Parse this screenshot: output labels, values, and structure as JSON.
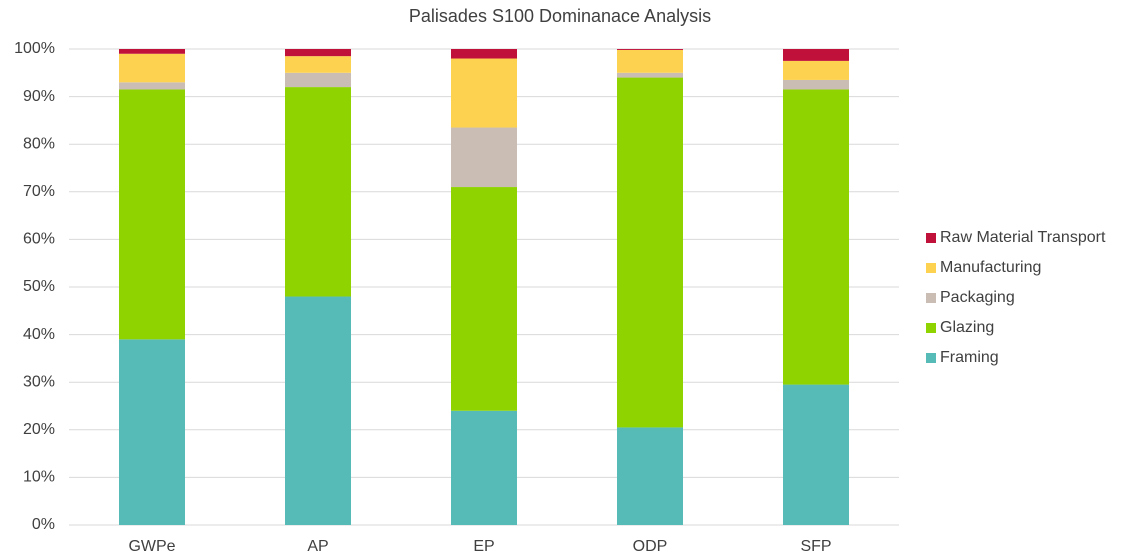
{
  "chart_data": {
    "type": "stacked_bar",
    "title": "Palisades S100 Dominanace Analysis",
    "categories": [
      "GWPe",
      "AP",
      "EP",
      "ODP",
      "SFP"
    ],
    "series": [
      {
        "name": "Framing",
        "color": "#56bbb7",
        "values": [
          39,
          48,
          24,
          20.5,
          29.5
        ]
      },
      {
        "name": "Glazing",
        "color": "#8fd400",
        "values": [
          52.5,
          44,
          47,
          73.5,
          62
        ]
      },
      {
        "name": "Packaging",
        "color": "#c9bdb4",
        "values": [
          1.5,
          3,
          12.5,
          1,
          2
        ]
      },
      {
        "name": "Manufacturing",
        "color": "#fdd251",
        "values": [
          6,
          3.5,
          14.5,
          4.8,
          4
        ]
      },
      {
        "name": "Raw Material Transport",
        "color": "#c0113a",
        "values": [
          1,
          1.5,
          2,
          0.2,
          2.5
        ]
      }
    ],
    "ylim": [
      0,
      100
    ],
    "yticks": [
      {
        "value": 0,
        "label": "0%"
      },
      {
        "value": 10,
        "label": "10%"
      },
      {
        "value": 20,
        "label": "20%"
      },
      {
        "value": 30,
        "label": "30%"
      },
      {
        "value": 40,
        "label": "40%"
      },
      {
        "value": 50,
        "label": "50%"
      },
      {
        "value": 60,
        "label": "60%"
      },
      {
        "value": 70,
        "label": "70%"
      },
      {
        "value": 80,
        "label": "80%"
      },
      {
        "value": 90,
        "label": "90%"
      },
      {
        "value": 100,
        "label": "100%"
      }
    ],
    "grid": true,
    "legend": "right"
  }
}
